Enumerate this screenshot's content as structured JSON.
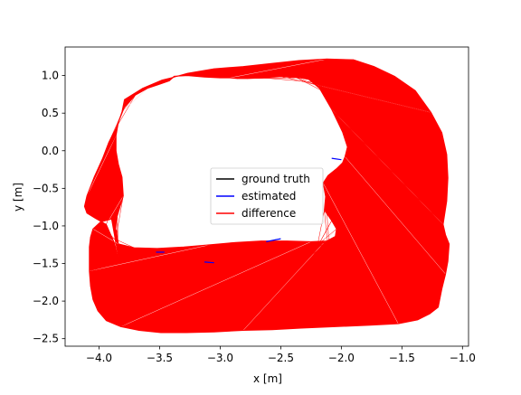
{
  "chart_data": {
    "type": "line",
    "title": "",
    "xlabel": "x [m]",
    "ylabel": "y [m]",
    "xlim": [
      -4.28,
      -0.95
    ],
    "ylim": [
      -2.6,
      1.38
    ],
    "xticks": [
      -4.0,
      -3.5,
      -3.0,
      -2.5,
      -2.0,
      -1.5,
      -1.0
    ],
    "xtick_labels": [
      "−4.0",
      "−3.5",
      "−3.0",
      "−2.5",
      "−2.0",
      "−1.5",
      "−1.0"
    ],
    "yticks": [
      1.0,
      0.5,
      0.0,
      -0.5,
      -1.0,
      -1.5,
      -2.0,
      -2.5
    ],
    "ytick_labels": [
      "1.0",
      "0.5",
      "0.0",
      "−0.5",
      "−1.0",
      "−1.5",
      "−2.0",
      "−2.5"
    ],
    "grid": false,
    "legend": {
      "placement": "center",
      "entries": [
        {
          "label": "ground truth",
          "color": "#000000"
        },
        {
          "label": "estimated",
          "color": "#0000ff"
        },
        {
          "label": "difference",
          "color": "#ff0000"
        }
      ]
    },
    "outer_path": {
      "x": [
        -3.84,
        -3.87,
        -3.94,
        -4.03,
        -4.1,
        -4.12,
        -4.1,
        -4.04,
        -3.97,
        -3.92,
        -3.85,
        -3.81,
        -3.79,
        -3.64,
        -3.48,
        -3.38,
        -3.27,
        -3.05,
        -2.81,
        -2.58,
        -2.35,
        -2.12,
        -1.9,
        -1.73,
        -1.56,
        -1.39,
        -1.26,
        -1.17,
        -1.13,
        -1.12,
        -1.13,
        -1.16,
        -1.14,
        -1.11,
        -1.12,
        -1.14,
        -1.17,
        -1.2,
        -1.27,
        -1.37,
        -1.53,
        -1.76,
        -2.05,
        -2.33,
        -2.57,
        -2.81,
        -3.05,
        -3.28,
        -3.49,
        -3.67,
        -3.82,
        -3.94,
        -4.01,
        -4.05,
        -4.07,
        -4.08,
        -4.08,
        -4.08,
        -4.07,
        -4.05,
        -3.99,
        -3.9
      ],
      "y": [
        -1.45,
        -1.24,
        -0.98,
        -0.9,
        -0.83,
        -0.74,
        -0.6,
        -0.35,
        -0.1,
        0.11,
        0.33,
        0.52,
        0.68,
        0.83,
        0.94,
        0.98,
        1.03,
        1.09,
        1.12,
        1.16,
        1.2,
        1.22,
        1.21,
        1.12,
        0.99,
        0.8,
        0.51,
        0.24,
        -0.05,
        -0.36,
        -0.67,
        -0.98,
        -1.12,
        -1.24,
        -1.47,
        -1.64,
        -1.84,
        -2.08,
        -2.17,
        -2.25,
        -2.3,
        -2.32,
        -2.34,
        -2.36,
        -2.38,
        -2.39,
        -2.41,
        -2.42,
        -2.42,
        -2.39,
        -2.34,
        -2.26,
        -2.13,
        -1.98,
        -1.8,
        -1.6,
        -1.44,
        -1.28,
        -1.15,
        -1.04,
        -0.95,
        -0.91
      ]
    },
    "inner_path": {
      "x": [
        -3.85,
        -3.8,
        -3.81,
        -3.84,
        -3.86,
        -3.86,
        -3.84,
        -3.79,
        -3.7,
        -3.6,
        -3.51,
        -3.42,
        -3.38,
        -3.27,
        -3.13,
        -3.0,
        -2.92,
        -2.86,
        -2.78,
        -2.65,
        -2.5,
        -2.38,
        -2.27,
        -2.18,
        -2.08,
        -1.99,
        -1.95,
        -1.97,
        -1.99,
        -2.04,
        -2.11,
        -2.15,
        -2.13,
        -2.14,
        -2.08,
        -2.04,
        -2.05,
        -2.12,
        -2.25,
        -2.45,
        -2.66,
        -2.87,
        -3.08,
        -3.3,
        -3.52,
        -3.71,
        -3.84,
        -3.86
      ],
      "y": [
        -0.87,
        -0.6,
        -0.35,
        -0.18,
        0.0,
        0.2,
        0.38,
        0.58,
        0.74,
        0.83,
        0.88,
        0.93,
        0.99,
        1.0,
        0.98,
        0.97,
        0.97,
        0.96,
        0.96,
        0.97,
        0.99,
        0.98,
        0.95,
        0.83,
        0.55,
        0.25,
        0.05,
        -0.08,
        -0.16,
        -0.24,
        -0.33,
        -0.43,
        -0.61,
        -0.79,
        -0.93,
        -1.04,
        -1.14,
        -1.2,
        -1.21,
        -1.2,
        -1.2,
        -1.22,
        -1.25,
        -1.28,
        -1.3,
        -1.29,
        -1.24,
        -1.05
      ]
    },
    "estimated_segments": [
      {
        "x": [
          -3.53,
          -3.46
        ],
        "y": [
          -1.35,
          -1.35
        ]
      },
      {
        "x": [
          -3.13,
          -3.05
        ],
        "y": [
          -1.48,
          -1.49
        ]
      },
      {
        "x": [
          -2.62,
          -2.5
        ],
        "y": [
          -1.21,
          -1.17
        ]
      },
      {
        "x": [
          -2.08,
          -2.0
        ],
        "y": [
          -0.1,
          -0.12
        ]
      }
    ]
  }
}
